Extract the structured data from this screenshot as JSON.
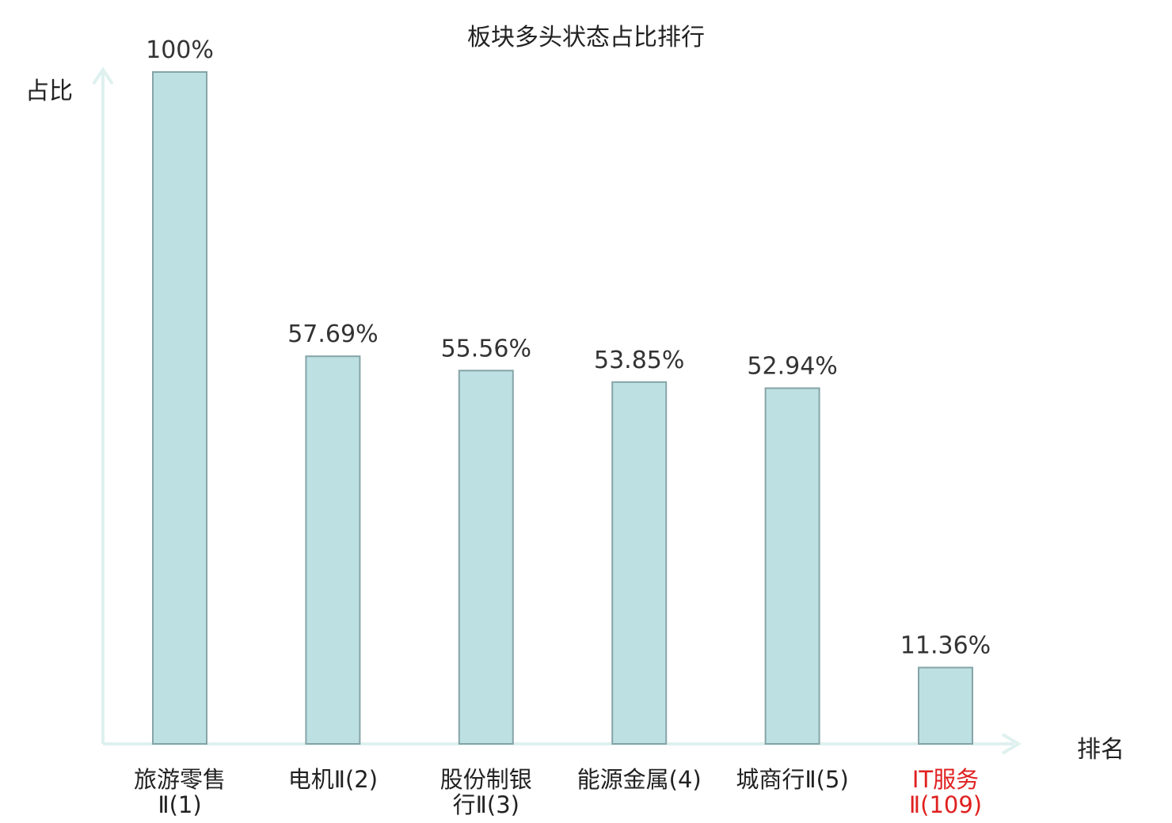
{
  "chart_data": {
    "type": "bar",
    "title": "板块多头状态占比排行",
    "xlabel": "排名",
    "ylabel": "占比",
    "categories": [
      [
        "旅游零售",
        "Ⅱ(1)"
      ],
      [
        "电机Ⅱ(2)"
      ],
      [
        "股份制银",
        "行Ⅱ(3)"
      ],
      [
        "能源金属(4)"
      ],
      [
        "城商行Ⅱ(5)"
      ],
      [
        "IT服务",
        "Ⅱ(109)"
      ]
    ],
    "values": [
      100,
      57.69,
      55.56,
      53.85,
      52.94,
      11.36
    ],
    "value_labels": [
      "100%",
      "57.69%",
      "55.56%",
      "53.85%",
      "52.94%",
      "11.36%"
    ],
    "highlight_index": 5,
    "ylim": [
      0,
      100
    ],
    "grid": false,
    "colors": {
      "bar_fill": "#bde0e3",
      "bar_stroke": "#86a4a8",
      "axis": "#dff1ef",
      "label": "#222222",
      "highlight": "#e02020"
    }
  }
}
